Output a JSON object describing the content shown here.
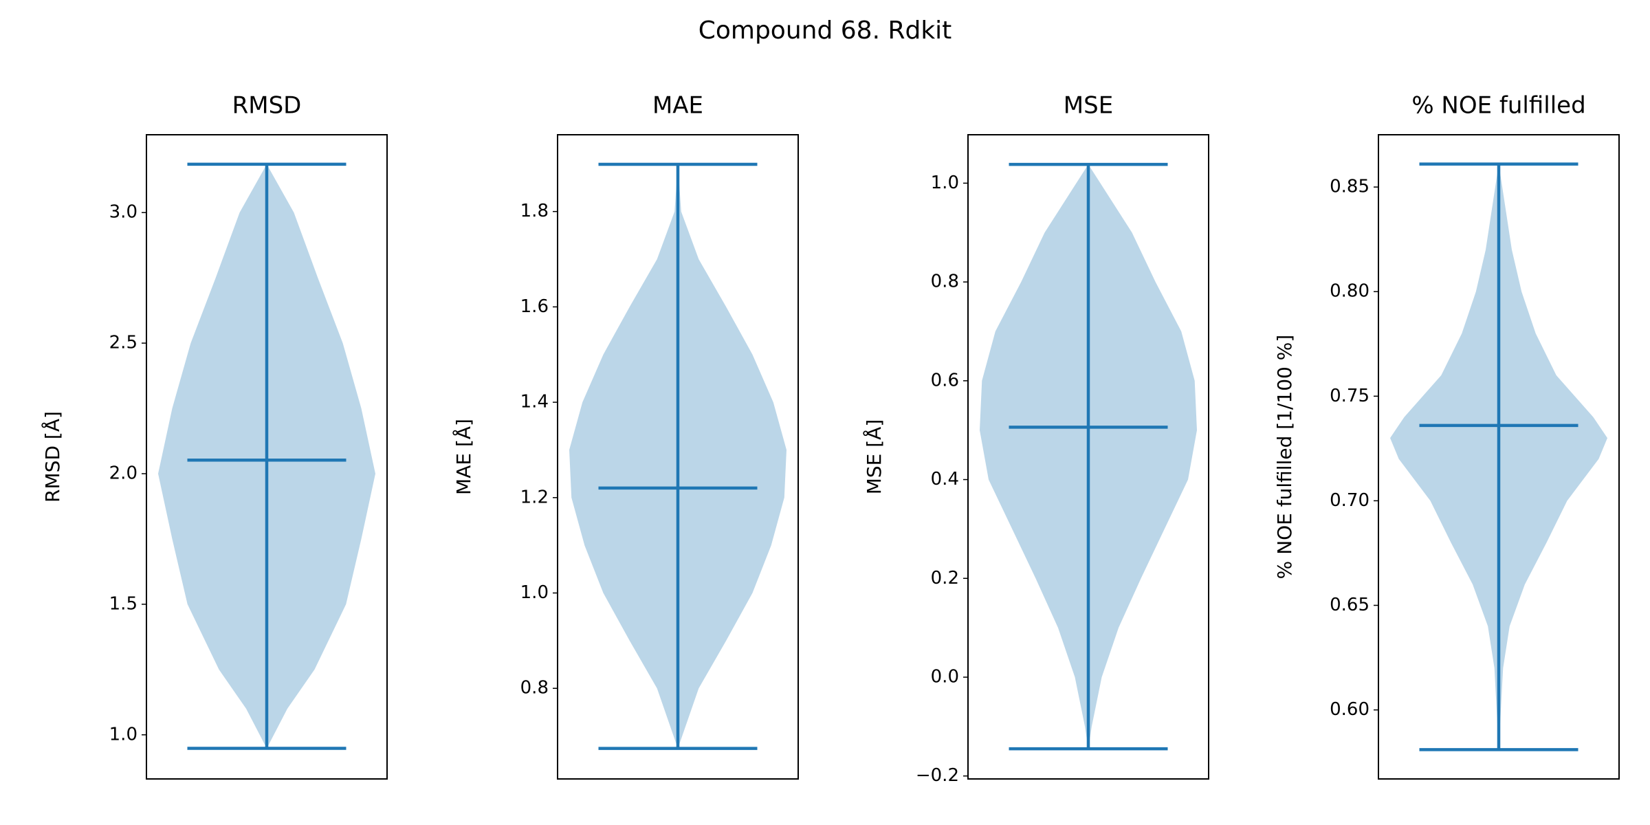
{
  "title": "Compound 68. Rdkit",
  "chart_data": [
    {
      "type": "violin",
      "title": "RMSD",
      "ylabel": "RMSD [Å]",
      "color": "#1f77b4",
      "ylim": [
        0.831,
        3.298
      ],
      "yticks": [
        {
          "value": 1,
          "label": "1.0"
        },
        1.5,
        {
          "value": 2,
          "label": "2.0"
        },
        2.5,
        {
          "value": 3,
          "label": "3.0"
        }
      ],
      "min": 0.948,
      "max": 3.185,
      "median": 2.052,
      "density_y": [
        3.185,
        3.0,
        2.75,
        2.5,
        2.25,
        2.0,
        1.75,
        1.5,
        1.25,
        1.1,
        0.948
      ],
      "density": [
        0,
        0.25,
        0.47,
        0.7,
        0.87,
        1.0,
        0.87,
        0.73,
        0.44,
        0.19,
        0
      ]
    },
    {
      "type": "violin",
      "title": "MAE",
      "ylabel": "MAE [Å]",
      "color": "#1f77b4",
      "ylim": [
        0.61,
        1.961
      ],
      "yticks": [
        0.8,
        {
          "value": 1,
          "label": "1.0"
        },
        1.2,
        1.4,
        1.6,
        1.8
      ],
      "min": 0.674,
      "max": 1.899,
      "median": 1.22,
      "density_y": [
        1.899,
        1.8,
        1.7,
        1.6,
        1.5,
        1.4,
        1.3,
        1.2,
        1.1,
        1.0,
        0.9,
        0.8,
        0.674
      ],
      "density": [
        0,
        0.03,
        0.19,
        0.44,
        0.68,
        0.87,
        0.99,
        0.97,
        0.85,
        0.68,
        0.44,
        0.19,
        0
      ]
    },
    {
      "type": "violin",
      "title": "MSE",
      "ylabel": "MSE [Å]",
      "color": "#1f77b4",
      "ylim": [
        -0.206,
        1.098
      ],
      "yticks": [
        {
          "value": -0.2,
          "label": "−0.2"
        },
        {
          "value": 0,
          "label": "0.0"
        },
        0.2,
        0.4,
        0.6,
        0.8,
        {
          "value": 1,
          "label": "1.0"
        }
      ],
      "min": -0.145,
      "max": 1.038,
      "median": 0.506,
      "density_y": [
        1.038,
        0.9,
        0.8,
        0.7,
        0.6,
        0.5,
        0.4,
        0.3,
        0.2,
        0.1,
        0,
        -0.1,
        -0.145
      ],
      "density": [
        0,
        0.39,
        0.6,
        0.83,
        0.95,
        0.97,
        0.89,
        0.68,
        0.47,
        0.27,
        0.12,
        0.03,
        0
      ]
    },
    {
      "type": "violin",
      "title": "% NOE fulfilled",
      "ylabel": "% NOE fulfilled [1/100 %]",
      "color": "#1f77b4",
      "ylim": [
        0.567,
        0.875
      ],
      "yticks": [
        {
          "value": 0.6,
          "label": "0.60"
        },
        0.65,
        {
          "value": 0.7,
          "label": "0.70"
        },
        0.75,
        {
          "value": 0.8,
          "label": "0.80"
        },
        0.85
      ],
      "min": 0.581,
      "max": 0.861,
      "median": 0.736,
      "density_y": [
        0.861,
        0.82,
        0.8,
        0.78,
        0.76,
        0.74,
        0.73,
        0.72,
        0.7,
        0.68,
        0.66,
        0.64,
        0.62,
        0.581
      ],
      "density": [
        0,
        0.12,
        0.21,
        0.34,
        0.53,
        0.87,
        1.0,
        0.92,
        0.63,
        0.44,
        0.24,
        0.1,
        0.04,
        0
      ]
    }
  ]
}
